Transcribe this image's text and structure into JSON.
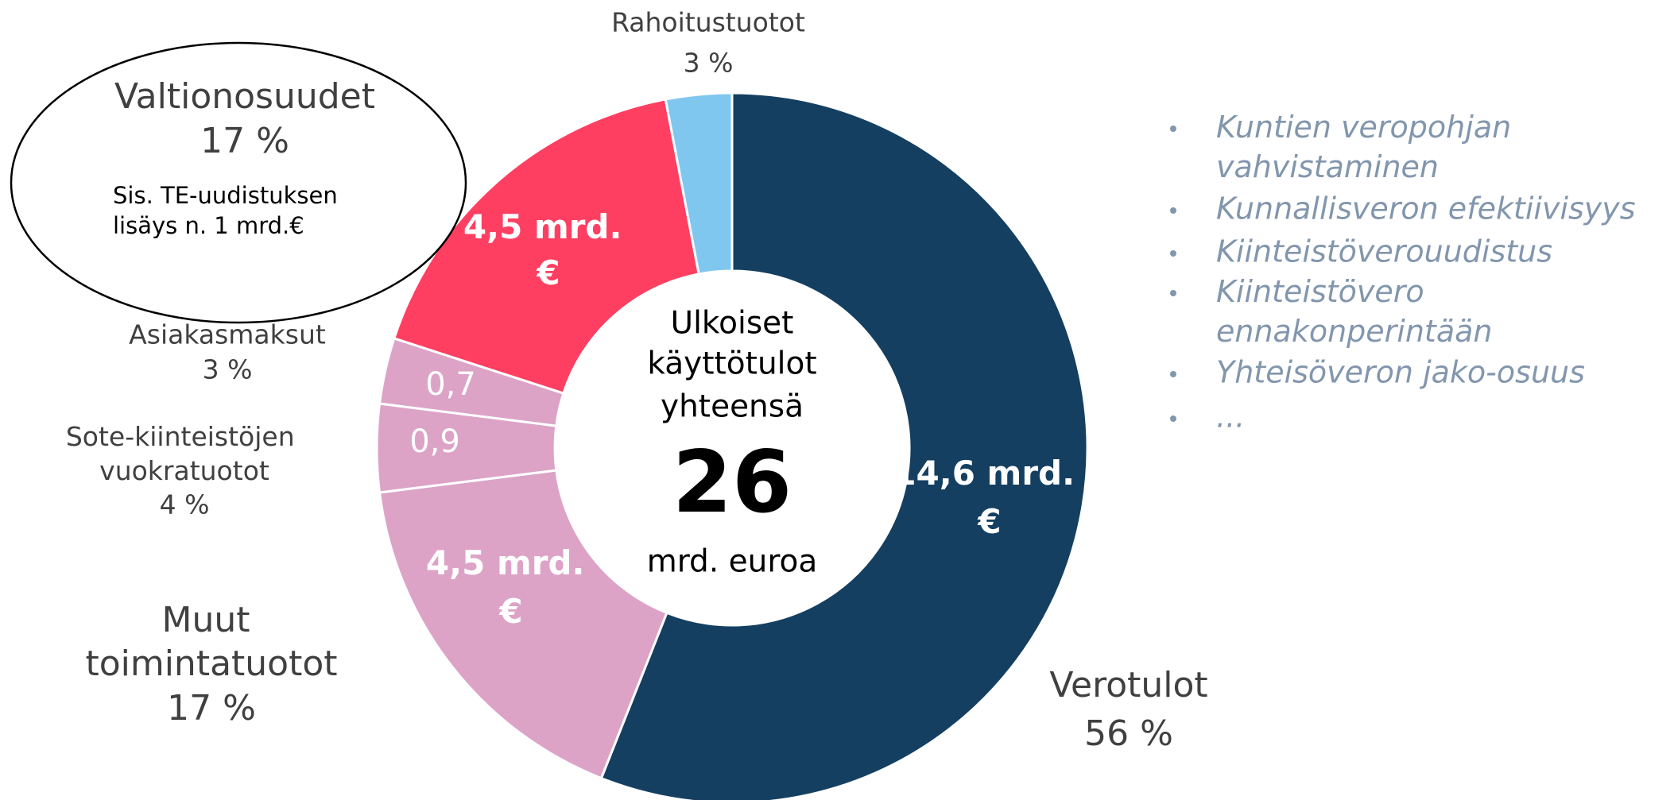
{
  "chart_data": {
    "type": "donut",
    "categories": [
      "Verotulot",
      "Muut toimintatuotot",
      "Sote-kiinteistöjen vuokratuotot",
      "Asiakasmaksut",
      "Valtionosuudet",
      "Rahoitustuotot"
    ],
    "values": [
      56,
      17,
      4,
      3,
      17,
      3
    ],
    "value_labels": [
      "56 %",
      "17 %",
      "4 %",
      "3 %",
      "17 %",
      "3 %"
    ],
    "amount_labels": [
      "14,6 mrd. €",
      "4,5 mrd. €",
      "0,9",
      "0,7",
      "4,5 mrd. €",
      null
    ],
    "colors": [
      "#143f61",
      "#dca3c7",
      "#dca3c7",
      "#dca3c7",
      "#ff3f62",
      "#80c7f0"
    ],
    "center_text": {
      "line1": "Ulkoiset",
      "line2": "käyttötulot",
      "line3": "yhteensä",
      "total": "26",
      "unit": "mrd. euroa"
    },
    "annotation": {
      "line1": "Sis. TE-uudistuksen",
      "line2": "lisäys n. 1 mrd.€"
    },
    "bullets": [
      "Kuntien veropohjan vahvistaminen",
      "Kunnallisveron efektiivisyys",
      "Kiinteistöverouudistus",
      "Kiinteistövero ennakonperintään",
      "Yhteisöveron jako-osuus",
      "..."
    ]
  }
}
